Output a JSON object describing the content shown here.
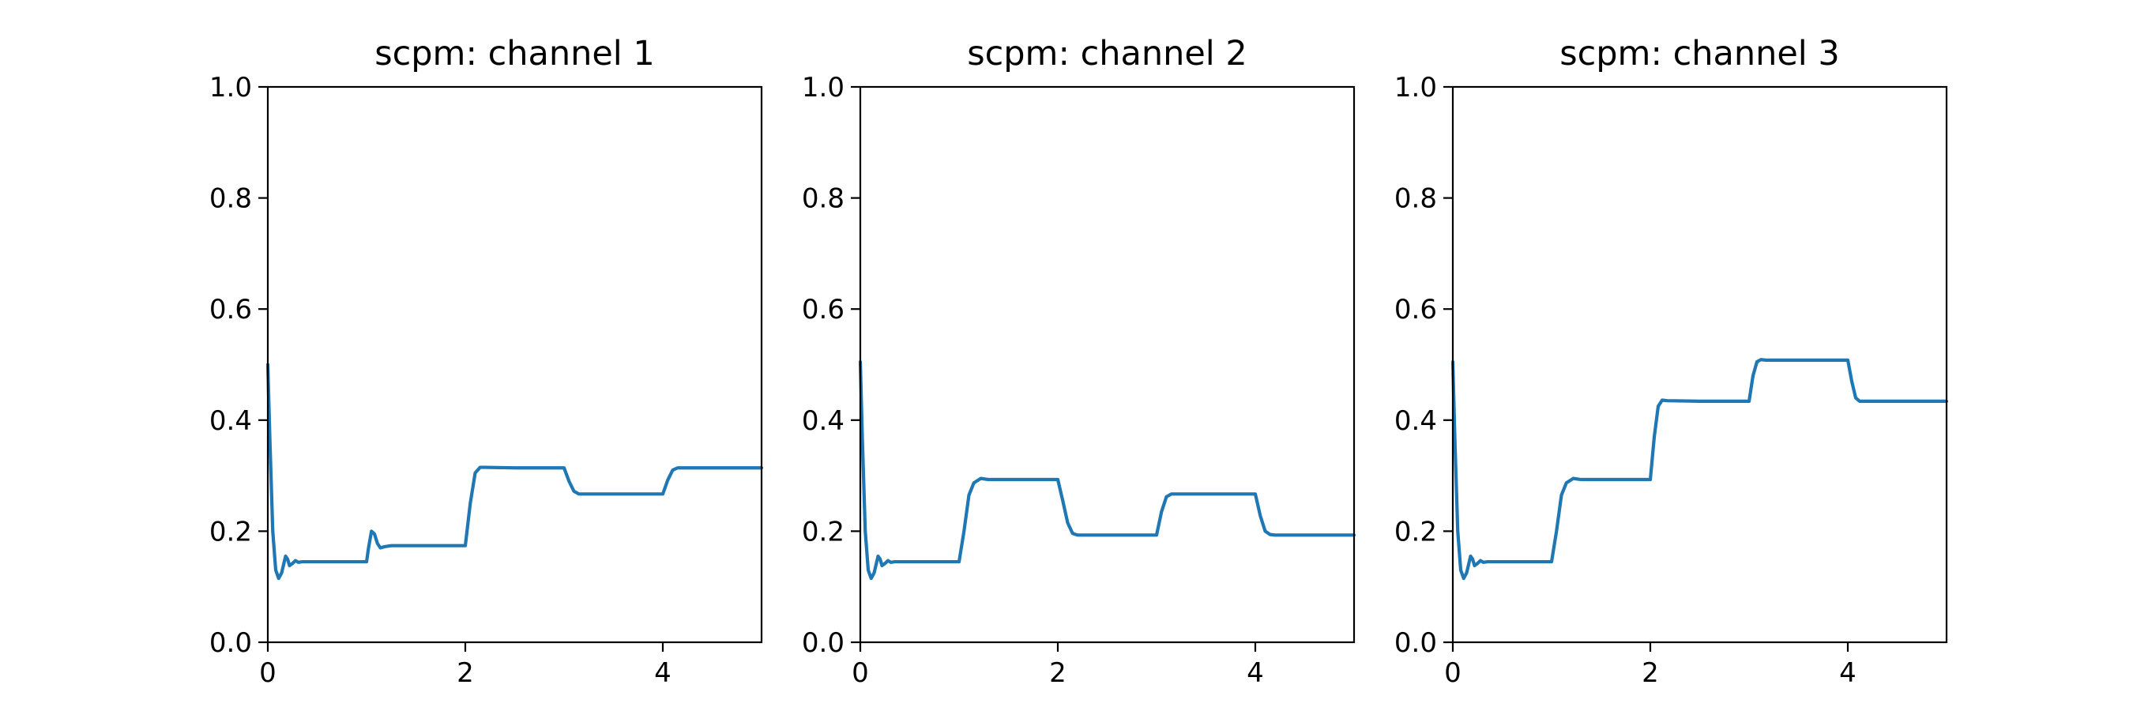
{
  "chart_data": [
    {
      "type": "line",
      "title": "scpm: channel 1",
      "xlabel": "",
      "ylabel": "",
      "xlim": [
        0,
        5
      ],
      "ylim": [
        0.0,
        1.0
      ],
      "xticks": [
        0,
        2,
        4
      ],
      "xtick_labels": [
        "0",
        "2",
        "4"
      ],
      "yticks": [
        0.0,
        0.2,
        0.4,
        0.6,
        0.8,
        1.0
      ],
      "ytick_labels": [
        "0.0",
        "0.2",
        "0.4",
        "0.6",
        "0.8",
        "1.0"
      ],
      "grid": false,
      "series": [
        {
          "color": "#1f77b4",
          "x": [
            0,
            0.02,
            0.05,
            0.08,
            0.11,
            0.14,
            0.18,
            0.2,
            0.22,
            0.25,
            0.28,
            0.31,
            0.35,
            0.4,
            0.5,
            0.7,
            1.0,
            1.02,
            1.05,
            1.08,
            1.11,
            1.14,
            1.18,
            1.25,
            1.5,
            2.0,
            2.05,
            2.1,
            2.15,
            2.2,
            2.5,
            3.0,
            3.05,
            3.1,
            3.15,
            3.2,
            3.5,
            4.0,
            4.05,
            4.1,
            4.15,
            4.2,
            4.5,
            5.0
          ],
          "y": [
            0.5,
            0.37,
            0.2,
            0.13,
            0.115,
            0.125,
            0.155,
            0.15,
            0.138,
            0.142,
            0.147,
            0.144,
            0.145,
            0.145,
            0.145,
            0.145,
            0.145,
            0.17,
            0.2,
            0.195,
            0.178,
            0.17,
            0.172,
            0.174,
            0.174,
            0.174,
            0.25,
            0.305,
            0.315,
            0.315,
            0.314,
            0.314,
            0.29,
            0.272,
            0.267,
            0.267,
            0.267,
            0.267,
            0.292,
            0.31,
            0.314,
            0.314,
            0.314,
            0.314
          ]
        }
      ]
    },
    {
      "type": "line",
      "title": "scpm: channel 2",
      "xlabel": "",
      "ylabel": "",
      "xlim": [
        0,
        5
      ],
      "ylim": [
        0.0,
        1.0
      ],
      "xticks": [
        0,
        2,
        4
      ],
      "xtick_labels": [
        "0",
        "2",
        "4"
      ],
      "yticks": [
        0.0,
        0.2,
        0.4,
        0.6,
        0.8,
        1.0
      ],
      "ytick_labels": [
        "0.0",
        "0.2",
        "0.4",
        "0.6",
        "0.8",
        "1.0"
      ],
      "grid": false,
      "series": [
        {
          "color": "#1f77b4",
          "x": [
            0,
            0.02,
            0.05,
            0.08,
            0.11,
            0.14,
            0.18,
            0.2,
            0.22,
            0.25,
            0.28,
            0.31,
            0.35,
            0.4,
            0.5,
            0.7,
            1.0,
            1.05,
            1.1,
            1.15,
            1.22,
            1.3,
            1.5,
            2.0,
            2.05,
            2.1,
            2.15,
            2.2,
            2.3,
            2.5,
            3.0,
            3.05,
            3.1,
            3.15,
            3.2,
            3.5,
            4.0,
            4.05,
            4.1,
            4.15,
            4.2,
            4.5,
            5.0
          ],
          "y": [
            0.505,
            0.37,
            0.2,
            0.13,
            0.115,
            0.125,
            0.155,
            0.15,
            0.138,
            0.142,
            0.147,
            0.144,
            0.145,
            0.145,
            0.145,
            0.145,
            0.145,
            0.2,
            0.265,
            0.287,
            0.295,
            0.293,
            0.293,
            0.293,
            0.255,
            0.215,
            0.196,
            0.193,
            0.193,
            0.193,
            0.193,
            0.235,
            0.262,
            0.267,
            0.267,
            0.267,
            0.267,
            0.228,
            0.2,
            0.194,
            0.193,
            0.193,
            0.193
          ]
        }
      ]
    },
    {
      "type": "line",
      "title": "scpm: channel 3",
      "xlabel": "",
      "ylabel": "",
      "xlim": [
        0,
        5
      ],
      "ylim": [
        0.0,
        1.0
      ],
      "xticks": [
        0,
        2,
        4
      ],
      "xtick_labels": [
        "0",
        "2",
        "4"
      ],
      "yticks": [
        0.0,
        0.2,
        0.4,
        0.6,
        0.8,
        1.0
      ],
      "ytick_labels": [
        "0.0",
        "0.2",
        "0.4",
        "0.6",
        "0.8",
        "1.0"
      ],
      "grid": false,
      "series": [
        {
          "color": "#1f77b4",
          "x": [
            0,
            0.02,
            0.05,
            0.08,
            0.11,
            0.14,
            0.18,
            0.2,
            0.22,
            0.25,
            0.28,
            0.31,
            0.35,
            0.4,
            0.5,
            0.7,
            1.0,
            1.05,
            1.1,
            1.15,
            1.22,
            1.3,
            1.5,
            2.0,
            2.04,
            2.08,
            2.12,
            2.17,
            2.5,
            3.0,
            3.04,
            3.08,
            3.12,
            3.17,
            3.5,
            4.0,
            4.04,
            4.08,
            4.12,
            4.17,
            4.5,
            5.0
          ],
          "y": [
            0.505,
            0.37,
            0.2,
            0.13,
            0.115,
            0.125,
            0.155,
            0.15,
            0.138,
            0.142,
            0.147,
            0.144,
            0.145,
            0.145,
            0.145,
            0.145,
            0.145,
            0.2,
            0.265,
            0.287,
            0.295,
            0.293,
            0.293,
            0.293,
            0.37,
            0.425,
            0.436,
            0.435,
            0.434,
            0.434,
            0.48,
            0.505,
            0.509,
            0.508,
            0.508,
            0.508,
            0.47,
            0.44,
            0.434,
            0.434,
            0.434,
            0.434
          ]
        }
      ]
    }
  ]
}
